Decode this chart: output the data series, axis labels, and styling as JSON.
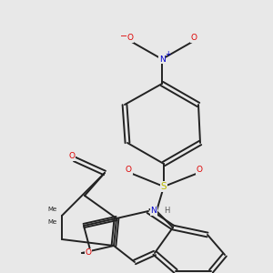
{
  "bg_color": "#e8e8e8",
  "bond_color": "#222222",
  "bond_lw": 1.4,
  "atom_colors": {
    "O": "#dd0000",
    "N": "#0000cc",
    "S": "#bbbb00",
    "H": "#555555"
  },
  "figsize": [
    3.0,
    3.0
  ],
  "dpi": 100,
  "xlim": [
    0,
    10
  ],
  "ylim": [
    0,
    10
  ]
}
